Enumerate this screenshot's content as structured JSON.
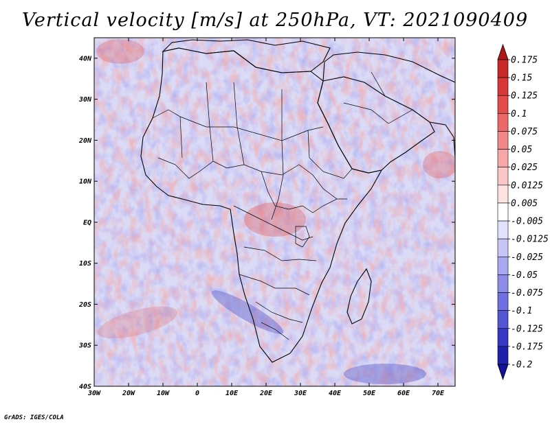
{
  "title": "Vertical velocity [m/s] at 250hPa, VT: 2021090409",
  "credit": "GrADS: IGES/COLA",
  "map": {
    "lon_labels": [
      "30W",
      "20W",
      "10W",
      "0",
      "10E",
      "20E",
      "30E",
      "40E",
      "50E",
      "60E",
      "70E"
    ],
    "lat_labels": [
      "40N",
      "30N",
      "20N",
      "10N",
      "EQ",
      "10S",
      "20S",
      "30S",
      "40S"
    ],
    "lon_range": [
      -30,
      75
    ],
    "lat_range": [
      -40,
      45
    ]
  },
  "colorbar": {
    "levels": [
      "0.175",
      "0.15",
      "0.125",
      "0.1",
      "0.075",
      "0.05",
      "0.025",
      "0.0125",
      "0.005",
      "-0.005",
      "-0.0125",
      "-0.025",
      "-0.05",
      "-0.075",
      "-0.1",
      "-0.125",
      "-0.175",
      "-0.2"
    ],
    "colors": [
      "#b01818",
      "#c82828",
      "#d83838",
      "#e44c4c",
      "#ec6868",
      "#f28888",
      "#f6a8a8",
      "#fac6c6",
      "#fde2e2",
      "#ffffff",
      "#e2e2fc",
      "#c6c6f6",
      "#a8a8f0",
      "#8c8ce8",
      "#7070e0",
      "#5454d4",
      "#3838c4",
      "#2020aa",
      "#12129a"
    ]
  }
}
